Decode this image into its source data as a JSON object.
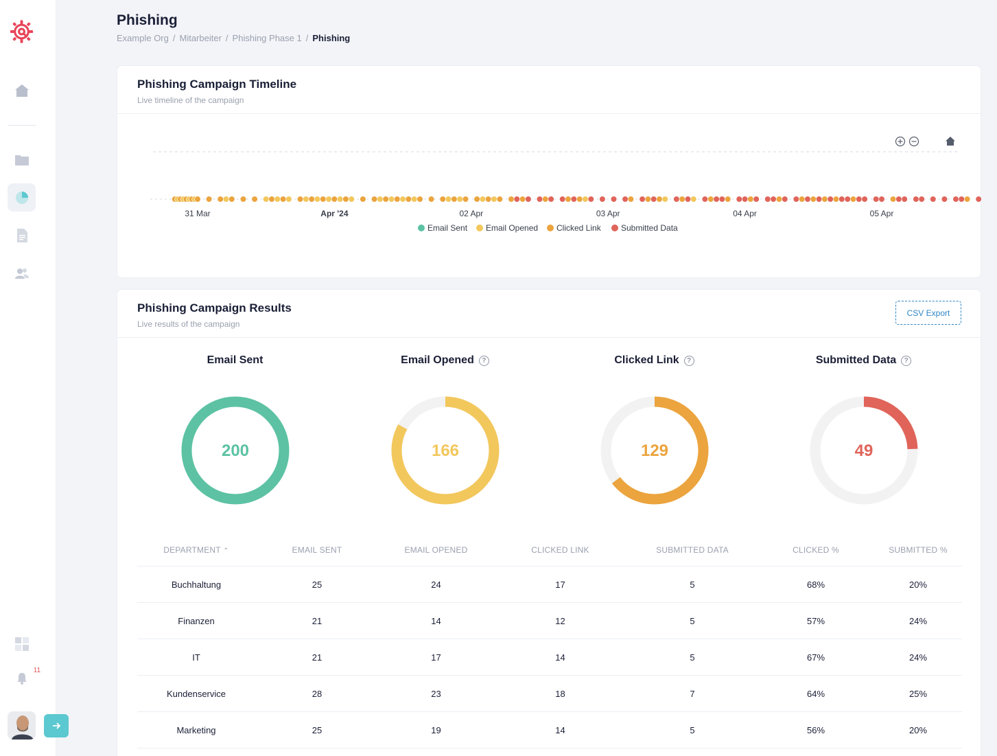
{
  "header": {
    "title": "Phishing",
    "breadcrumbs": [
      "Example Org",
      "Mitarbeiter",
      "Phishing Phase 1",
      "Phishing"
    ]
  },
  "sidebar": {
    "items": [
      {
        "icon": "logo-icon"
      },
      {
        "icon": "home-icon"
      },
      {
        "icon": "folder-icon"
      },
      {
        "icon": "pie-chart-icon"
      },
      {
        "icon": "document-icon"
      },
      {
        "icon": "users-icon"
      },
      {
        "icon": "grid-icon"
      },
      {
        "icon": "bell-icon"
      }
    ],
    "notification_count": "11"
  },
  "timeline": {
    "title": "Phishing Campaign Timeline",
    "subtitle": "Live timeline of the campaign"
  },
  "chart_data": {
    "type": "scatter",
    "x_ticks": [
      "31 Mar",
      "Apr '24",
      "02 Apr",
      "03 Apr",
      "04 Apr",
      "05 Apr"
    ],
    "legend": [
      {
        "name": "Email Sent",
        "color": "#5cc2a3"
      },
      {
        "name": "Email Opened",
        "color": "#f2c75c"
      },
      {
        "name": "Clicked Link",
        "color": "#eba43e"
      },
      {
        "name": "Submitted Data",
        "color": "#e0645a"
      }
    ],
    "legend_position": "bottom",
    "points": [
      {
        "x": "30 Mar 20:00",
        "s": 2
      },
      {
        "x": "30 Mar 20:30",
        "s": 1
      },
      {
        "x": "30 Mar 21:00",
        "s": 2
      },
      {
        "x": "30 Mar 21:30",
        "s": 1
      },
      {
        "x": "30 Mar 22:00",
        "s": 2
      },
      {
        "x": "30 Mar 22:30",
        "s": 1
      },
      {
        "x": "30 Mar 23:00",
        "s": 2
      },
      {
        "x": "30 Mar 23:30",
        "s": 1
      },
      {
        "x": "31 Mar 00:00",
        "s": 2
      },
      {
        "x": "31 Mar 02:00",
        "s": 2
      },
      {
        "x": "31 Mar 04:00",
        "s": 2
      },
      {
        "x": "31 Mar 05:00",
        "s": 1
      },
      {
        "x": "31 Mar 06:00",
        "s": 2
      },
      {
        "x": "31 Mar 08:00",
        "s": 2
      },
      {
        "x": "31 Mar 10:00",
        "s": 2
      },
      {
        "x": "31 Mar 12:00",
        "s": 1
      },
      {
        "x": "31 Mar 13:00",
        "s": 2
      },
      {
        "x": "31 Mar 14:00",
        "s": 1
      },
      {
        "x": "31 Mar 15:00",
        "s": 2
      },
      {
        "x": "31 Mar 16:00",
        "s": 1
      },
      {
        "x": "31 Mar 18:00",
        "s": 2
      },
      {
        "x": "31 Mar 19:00",
        "s": 1
      },
      {
        "x": "31 Mar 20:00",
        "s": 2
      },
      {
        "x": "31 Mar 21:00",
        "s": 1
      },
      {
        "x": "31 Mar 22:00",
        "s": 2
      },
      {
        "x": "31 Mar 23:00",
        "s": 1
      },
      {
        "x": "01 Apr 00:00",
        "s": 2
      },
      {
        "x": "01 Apr 01:00",
        "s": 1
      },
      {
        "x": "01 Apr 02:00",
        "s": 2
      },
      {
        "x": "01 Apr 03:00",
        "s": 1
      },
      {
        "x": "01 Apr 05:00",
        "s": 2
      },
      {
        "x": "01 Apr 07:00",
        "s": 2
      },
      {
        "x": "01 Apr 08:00",
        "s": 1
      },
      {
        "x": "01 Apr 09:00",
        "s": 2
      },
      {
        "x": "01 Apr 10:00",
        "s": 1
      },
      {
        "x": "01 Apr 11:00",
        "s": 2
      },
      {
        "x": "01 Apr 12:00",
        "s": 1
      },
      {
        "x": "01 Apr 13:00",
        "s": 2
      },
      {
        "x": "01 Apr 14:00",
        "s": 1
      },
      {
        "x": "01 Apr 15:00",
        "s": 2
      },
      {
        "x": "01 Apr 17:00",
        "s": 2
      },
      {
        "x": "01 Apr 19:00",
        "s": 2
      },
      {
        "x": "01 Apr 20:00",
        "s": 1
      },
      {
        "x": "01 Apr 21:00",
        "s": 2
      },
      {
        "x": "01 Apr 22:00",
        "s": 1
      },
      {
        "x": "01 Apr 23:00",
        "s": 2
      },
      {
        "x": "02 Apr 01:00",
        "s": 2
      },
      {
        "x": "02 Apr 02:00",
        "s": 1
      },
      {
        "x": "02 Apr 03:00",
        "s": 2
      },
      {
        "x": "02 Apr 04:00",
        "s": 1
      },
      {
        "x": "02 Apr 05:00",
        "s": 2
      },
      {
        "x": "02 Apr 07:00",
        "s": 2
      },
      {
        "x": "02 Apr 08:00",
        "s": 3
      },
      {
        "x": "02 Apr 09:00",
        "s": 2
      },
      {
        "x": "02 Apr 10:00",
        "s": 3
      },
      {
        "x": "02 Apr 12:00",
        "s": 3
      },
      {
        "x": "02 Apr 13:00",
        "s": 2
      },
      {
        "x": "02 Apr 14:00",
        "s": 3
      },
      {
        "x": "02 Apr 16:00",
        "s": 3
      },
      {
        "x": "02 Apr 17:00",
        "s": 2
      },
      {
        "x": "02 Apr 18:00",
        "s": 3
      },
      {
        "x": "02 Apr 19:00",
        "s": 2
      },
      {
        "x": "02 Apr 20:00",
        "s": 1
      },
      {
        "x": "02 Apr 21:00",
        "s": 3
      },
      {
        "x": "02 Apr 23:00",
        "s": 3
      },
      {
        "x": "03 Apr 01:00",
        "s": 3
      },
      {
        "x": "03 Apr 03:00",
        "s": 3
      },
      {
        "x": "03 Apr 04:00",
        "s": 2
      },
      {
        "x": "03 Apr 06:00",
        "s": 3
      },
      {
        "x": "03 Apr 07:00",
        "s": 2
      },
      {
        "x": "03 Apr 08:00",
        "s": 3
      },
      {
        "x": "03 Apr 09:00",
        "s": 2
      },
      {
        "x": "03 Apr 10:00",
        "s": 1
      },
      {
        "x": "03 Apr 12:00",
        "s": 3
      },
      {
        "x": "03 Apr 13:00",
        "s": 2
      },
      {
        "x": "03 Apr 14:00",
        "s": 3
      },
      {
        "x": "03 Apr 15:00",
        "s": 1
      },
      {
        "x": "03 Apr 17:00",
        "s": 3
      },
      {
        "x": "03 Apr 18:00",
        "s": 2
      },
      {
        "x": "03 Apr 19:00",
        "s": 3
      },
      {
        "x": "03 Apr 20:00",
        "s": 3
      },
      {
        "x": "03 Apr 21:00",
        "s": 2
      },
      {
        "x": "03 Apr 23:00",
        "s": 3
      },
      {
        "x": "04 Apr 00:00",
        "s": 3
      },
      {
        "x": "04 Apr 01:00",
        "s": 2
      },
      {
        "x": "04 Apr 02:00",
        "s": 3
      },
      {
        "x": "04 Apr 04:00",
        "s": 3
      },
      {
        "x": "04 Apr 05:00",
        "s": 3
      },
      {
        "x": "04 Apr 06:00",
        "s": 2
      },
      {
        "x": "04 Apr 07:00",
        "s": 3
      },
      {
        "x": "04 Apr 09:00",
        "s": 3
      },
      {
        "x": "04 Apr 10:00",
        "s": 2
      },
      {
        "x": "04 Apr 11:00",
        "s": 3
      },
      {
        "x": "04 Apr 12:00",
        "s": 2
      },
      {
        "x": "04 Apr 13:00",
        "s": 3
      },
      {
        "x": "04 Apr 14:00",
        "s": 2
      },
      {
        "x": "04 Apr 15:00",
        "s": 3
      },
      {
        "x": "04 Apr 16:00",
        "s": 2
      },
      {
        "x": "04 Apr 17:00",
        "s": 3
      },
      {
        "x": "04 Apr 18:00",
        "s": 3
      },
      {
        "x": "04 Apr 19:00",
        "s": 2
      },
      {
        "x": "04 Apr 20:00",
        "s": 3
      },
      {
        "x": "04 Apr 21:00",
        "s": 3
      },
      {
        "x": "04 Apr 23:00",
        "s": 3
      },
      {
        "x": "05 Apr 00:00",
        "s": 3
      },
      {
        "x": "05 Apr 02:00",
        "s": 2
      },
      {
        "x": "05 Apr 03:00",
        "s": 3
      },
      {
        "x": "05 Apr 04:00",
        "s": 3
      },
      {
        "x": "05 Apr 06:00",
        "s": 3
      },
      {
        "x": "05 Apr 07:00",
        "s": 3
      },
      {
        "x": "05 Apr 09:00",
        "s": 3
      },
      {
        "x": "05 Apr 11:00",
        "s": 3
      },
      {
        "x": "05 Apr 13:00",
        "s": 3
      },
      {
        "x": "05 Apr 14:00",
        "s": 3
      },
      {
        "x": "05 Apr 15:00",
        "s": 2
      },
      {
        "x": "05 Apr 17:00",
        "s": 3
      }
    ]
  },
  "results": {
    "title": "Phishing Campaign Results",
    "subtitle": "Live results of the campaign",
    "csv_label": "CSV Export",
    "donuts": [
      {
        "title": "Email Sent",
        "value": "200",
        "fraction": 1.0,
        "color": "#5cc2a3",
        "help": false
      },
      {
        "title": "Email Opened",
        "value": "166",
        "fraction": 0.83,
        "color": "#f2c75c",
        "help": true
      },
      {
        "title": "Clicked Link",
        "value": "129",
        "fraction": 0.645,
        "color": "#eba43e",
        "help": true
      },
      {
        "title": "Submitted Data",
        "value": "49",
        "fraction": 0.245,
        "color": "#e0645a",
        "help": true
      }
    ],
    "help_glyph": "?",
    "columns": [
      "DEPARTMENT",
      "EMAIL SENT",
      "EMAIL OPENED",
      "CLICKED LINK",
      "SUBMITTED DATA",
      "CLICKED %",
      "SUBMITTED %"
    ],
    "rows": [
      [
        "Buchhaltung",
        "25",
        "24",
        "17",
        "5",
        "68%",
        "20%"
      ],
      [
        "Finanzen",
        "21",
        "14",
        "12",
        "5",
        "57%",
        "24%"
      ],
      [
        "IT",
        "21",
        "17",
        "14",
        "5",
        "67%",
        "24%"
      ],
      [
        "Kundenservice",
        "28",
        "23",
        "18",
        "7",
        "64%",
        "25%"
      ],
      [
        "Marketing",
        "25",
        "19",
        "14",
        "5",
        "56%",
        "20%"
      ]
    ]
  }
}
